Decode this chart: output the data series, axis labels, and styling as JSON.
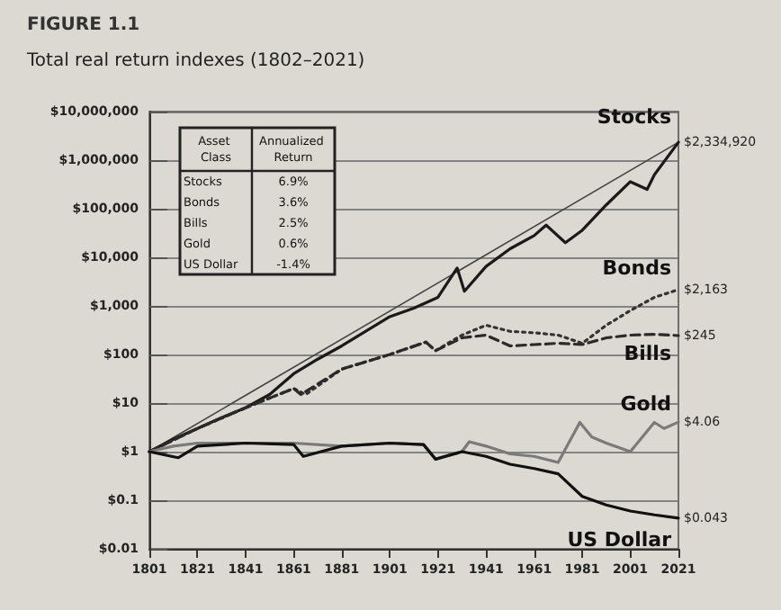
{
  "chart_data": {
    "type": "line",
    "title": "FIGURE 1.1",
    "subtitle": "Total real return indexes (1802–2021)",
    "annotations": [
      "Asset Class",
      "Annualized Return",
      "Stocks",
      "6.9%",
      "Bonds",
      "3.6%",
      "Bills",
      "2.5%",
      "Gold",
      "0.6%",
      "US Dollar",
      "-1.4%"
    ],
    "log": true,
    "grid": "y",
    "legend": false,
    "marker": "none",
    "xlim": [
      1801,
      2021
    ],
    "xticks": [
      1801,
      1821,
      1841,
      1861,
      1881,
      1901,
      1921,
      1941,
      1961,
      1981,
      2001,
      2021
    ],
    "ylim": [
      0.01,
      10000000
    ],
    "yticks": [
      {
        "value": 0.01,
        "label": "$0.01"
      },
      {
        "value": 0.1,
        "label": "$0.1"
      },
      {
        "value": 1,
        "label": "$1"
      },
      {
        "value": 10,
        "label": "$10"
      },
      {
        "value": 100,
        "label": "$100"
      },
      {
        "value": 1000,
        "label": "$1,000"
      },
      {
        "value": 10000,
        "label": "$10,000"
      },
      {
        "value": 100000,
        "label": "$100,000"
      },
      {
        "value": 1000000,
        "label": "$1,000,000"
      },
      {
        "value": 10000000,
        "label": "$10,000,000"
      }
    ],
    "series": [
      {
        "name": "Stocks",
        "color": "#1a1a1a",
        "line_style": "solid",
        "x": [
          1801,
          1811,
          1821,
          1831,
          1841,
          1851,
          1861,
          1871,
          1881,
          1891,
          1901,
          1911,
          1921,
          1929,
          1932,
          1941,
          1951,
          1961,
          1966,
          1974,
          1981,
          1991,
          2001,
          2008,
          2011,
          2021
        ],
        "values": [
          1,
          1.8,
          3,
          5,
          8,
          15,
          40,
          80,
          150,
          300,
          600,
          900,
          1500,
          6000,
          2000,
          6500,
          15000,
          28000,
          46000,
          20000,
          36000,
          120000,
          360000,
          250000,
          500000,
          2334920
        ],
        "value_labels": [
          null,
          null,
          null,
          null,
          null,
          null,
          null,
          null,
          null,
          null,
          null,
          null,
          null,
          null,
          null,
          null,
          null,
          null,
          null,
          null,
          null,
          null,
          null,
          null,
          null,
          "$2,334,920"
        ]
      },
      {
        "color": "#444444",
        "line_style": "solid",
        "x": [
          1801,
          2021
        ],
        "values": [
          1,
          2334920
        ]
      },
      {
        "name": "Bonds",
        "color": "#333333",
        "line_style": "dotted",
        "x": [
          1801,
          1821,
          1841,
          1861,
          1866,
          1881,
          1901,
          1916,
          1920,
          1931,
          1941,
          1951,
          1961,
          1971,
          1981,
          1991,
          2001,
          2011,
          2021
        ],
        "values": [
          1,
          3,
          8,
          20,
          15,
          50,
          100,
          180,
          120,
          250,
          400,
          300,
          280,
          250,
          170,
          400,
          800,
          1500,
          2163
        ],
        "value_labels": [
          null,
          null,
          null,
          null,
          null,
          null,
          null,
          null,
          null,
          null,
          null,
          null,
          null,
          null,
          null,
          null,
          null,
          null,
          "$2,163"
        ]
      },
      {
        "name": "Bills",
        "color": "#2a2a2a",
        "line_style": "dashed",
        "x": [
          1801,
          1821,
          1841,
          1861,
          1864,
          1881,
          1901,
          1916,
          1920,
          1931,
          1941,
          1951,
          1961,
          1971,
          1981,
          1991,
          2001,
          2011,
          2021
        ],
        "values": [
          1,
          3,
          8,
          20,
          15,
          50,
          100,
          180,
          120,
          220,
          250,
          150,
          160,
          170,
          160,
          220,
          250,
          260,
          245
        ],
        "value_labels": [
          null,
          null,
          null,
          null,
          null,
          null,
          null,
          null,
          null,
          null,
          null,
          null,
          null,
          null,
          null,
          null,
          null,
          null,
          "$245"
        ]
      },
      {
        "name": "Gold",
        "color": "#7a7a7a",
        "line_style": "solid",
        "x": [
          1801,
          1811,
          1821,
          1841,
          1861,
          1881,
          1901,
          1915,
          1920,
          1931,
          1934,
          1941,
          1951,
          1961,
          1971,
          1980,
          1985,
          1991,
          2001,
          2011,
          2015,
          2021
        ],
        "values": [
          1,
          1.3,
          1.5,
          1.5,
          1.5,
          1.3,
          1.5,
          1.4,
          0.7,
          1.0,
          1.6,
          1.3,
          0.9,
          0.8,
          0.6,
          4,
          2,
          1.5,
          1,
          4,
          3,
          4.06
        ],
        "value_labels": [
          null,
          null,
          null,
          null,
          null,
          null,
          null,
          null,
          null,
          null,
          null,
          null,
          null,
          null,
          null,
          null,
          null,
          null,
          null,
          null,
          null,
          "$4.06"
        ]
      },
      {
        "name": "US Dollar",
        "color": "#111111",
        "line_style": "solid",
        "x": [
          1801,
          1813,
          1821,
          1841,
          1861,
          1865,
          1881,
          1901,
          1915,
          1920,
          1931,
          1941,
          1951,
          1961,
          1971,
          1981,
          1991,
          2001,
          2011,
          2021
        ],
        "values": [
          1,
          0.75,
          1.3,
          1.5,
          1.4,
          0.8,
          1.3,
          1.5,
          1.4,
          0.7,
          1.0,
          0.8,
          0.55,
          0.45,
          0.35,
          0.12,
          0.08,
          0.06,
          0.05,
          0.043
        ],
        "value_labels": [
          null,
          null,
          null,
          null,
          null,
          null,
          null,
          null,
          null,
          null,
          null,
          null,
          null,
          null,
          null,
          null,
          null,
          null,
          null,
          "$0.043"
        ]
      }
    ]
  }
}
